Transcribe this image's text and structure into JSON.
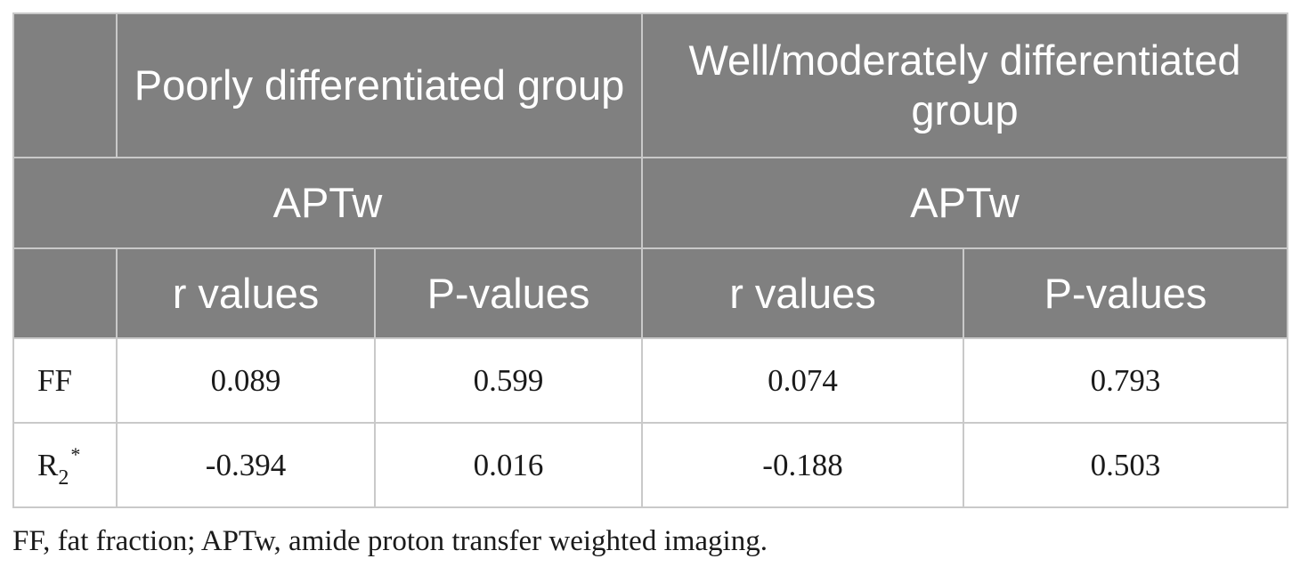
{
  "table": {
    "header": {
      "group_poor": "Poorly differentiated group",
      "group_well": "Well/moderately differentiated group",
      "aptw_poor": "APTw",
      "aptw_well": "APTw",
      "r_values_poor": "r values",
      "p_values_poor": "P-values",
      "r_values_well": "r values",
      "p_values_well": "P-values"
    },
    "rows": [
      {
        "label": "FF",
        "poor_r": "0.089",
        "poor_p": "0.599",
        "well_r": "0.074",
        "well_p": "0.793"
      },
      {
        "label_base": "R",
        "label_sub": "2",
        "label_sup": "*",
        "poor_r": "-0.394",
        "poor_p": "0.016",
        "well_r": "-0.188",
        "well_p": "0.503"
      }
    ]
  },
  "footnote": "FF, fat fraction; APTw, amide proton transfer weighted imaging."
}
